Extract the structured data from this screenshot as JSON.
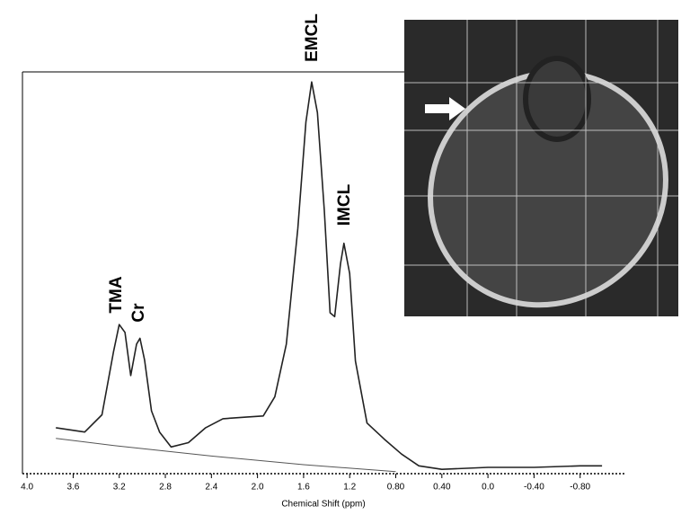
{
  "chart_data": {
    "type": "line",
    "x_label": "Chemical Shift (ppm)",
    "annotations": [
      "EMCL",
      "IMCL",
      "TMA",
      "Cr"
    ],
    "xlim": [
      4.04,
      -1.2
    ],
    "ylim": [
      0,
      101
    ],
    "xticks": [
      {
        "value": 4,
        "label": "4.0"
      },
      3.6,
      3.2,
      2.8,
      2.4,
      {
        "value": 2,
        "label": "2.0"
      },
      1.6,
      1.2,
      {
        "value": 0.8,
        "label": "0.80"
      },
      {
        "value": 0.4,
        "label": "0.40"
      },
      {
        "value": 0,
        "label": "0.0"
      },
      {
        "value": -0.4,
        "label": "-0.40"
      },
      {
        "value": -0.8,
        "label": "-0.80"
      }
    ],
    "series": [
      {
        "color": "#222222",
        "x": [
          3.75,
          3.5,
          3.35,
          3.25,
          3.2,
          3.15,
          3.1,
          3.05,
          3.02,
          2.98,
          2.92,
          2.85,
          2.75,
          2.6,
          2.45,
          2.3,
          2.1,
          1.95,
          1.85,
          1.75,
          1.65,
          1.58,
          1.53,
          1.48,
          1.42,
          1.37,
          1.33,
          1.28,
          1.25,
          1.2,
          1.15,
          1.05,
          0.9,
          0.75,
          0.6,
          0.4,
          0,
          -0.4,
          -0.8,
          -0.99
        ],
        "values": [
          11.7,
          10.6,
          15,
          31,
          38,
          36,
          25,
          33,
          34.5,
          29,
          16,
          10.6,
          6.8,
          7.9,
          11.7,
          14,
          14.4,
          14.7,
          19.6,
          33,
          62.5,
          89.6,
          99.8,
          92,
          67,
          41,
          40,
          53.5,
          58.7,
          51,
          28.7,
          12.9,
          8.8,
          5,
          2,
          1.1,
          1.6,
          1.6,
          2,
          2
        ]
      },
      {
        "color": "#555555",
        "x": [
          3.75,
          3.2,
          2.4,
          1.6,
          0.8
        ],
        "values": [
          9,
          7,
          4.5,
          2.3,
          0.5
        ]
      }
    ]
  }
}
